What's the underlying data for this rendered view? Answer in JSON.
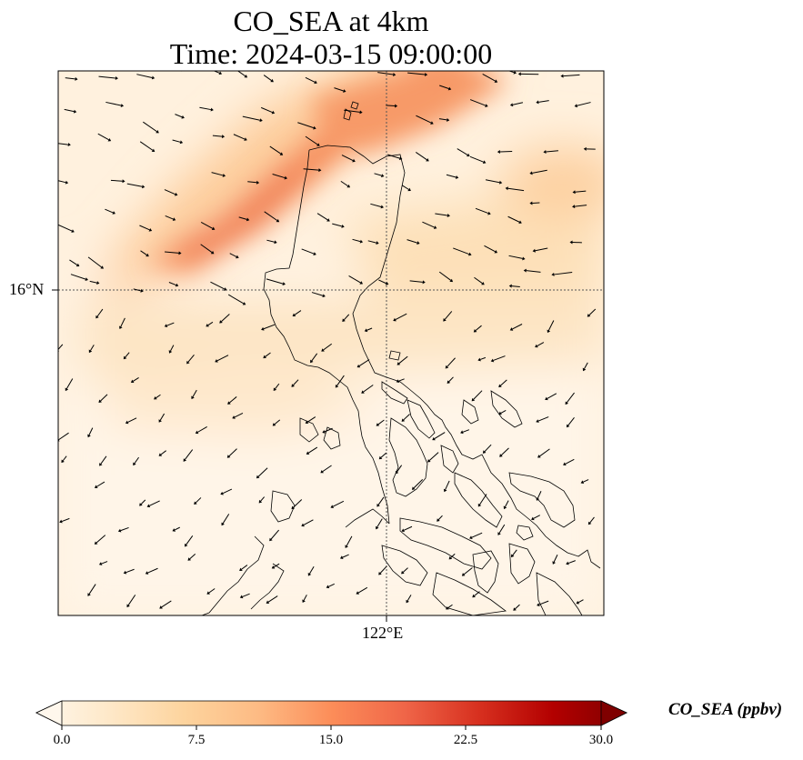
{
  "map": {
    "title_line1": "CO_SEA at 4km",
    "title_line2": "Time: 2024-03-15 09:00:00",
    "lat_tick_label": "16°N",
    "lon_tick_label": "122°E"
  },
  "colorbar": {
    "label": "CO_SEA (ppbv)",
    "ticks": [
      "0.0",
      "7.5",
      "15.0",
      "22.5",
      "30.0"
    ],
    "range": [
      0,
      30
    ],
    "colors": [
      "#fff7ec",
      "#fee8c8",
      "#fdd49e",
      "#fdbb84",
      "#fc8d59",
      "#ef6548",
      "#d7301f",
      "#b30000",
      "#7f0000"
    ]
  }
}
